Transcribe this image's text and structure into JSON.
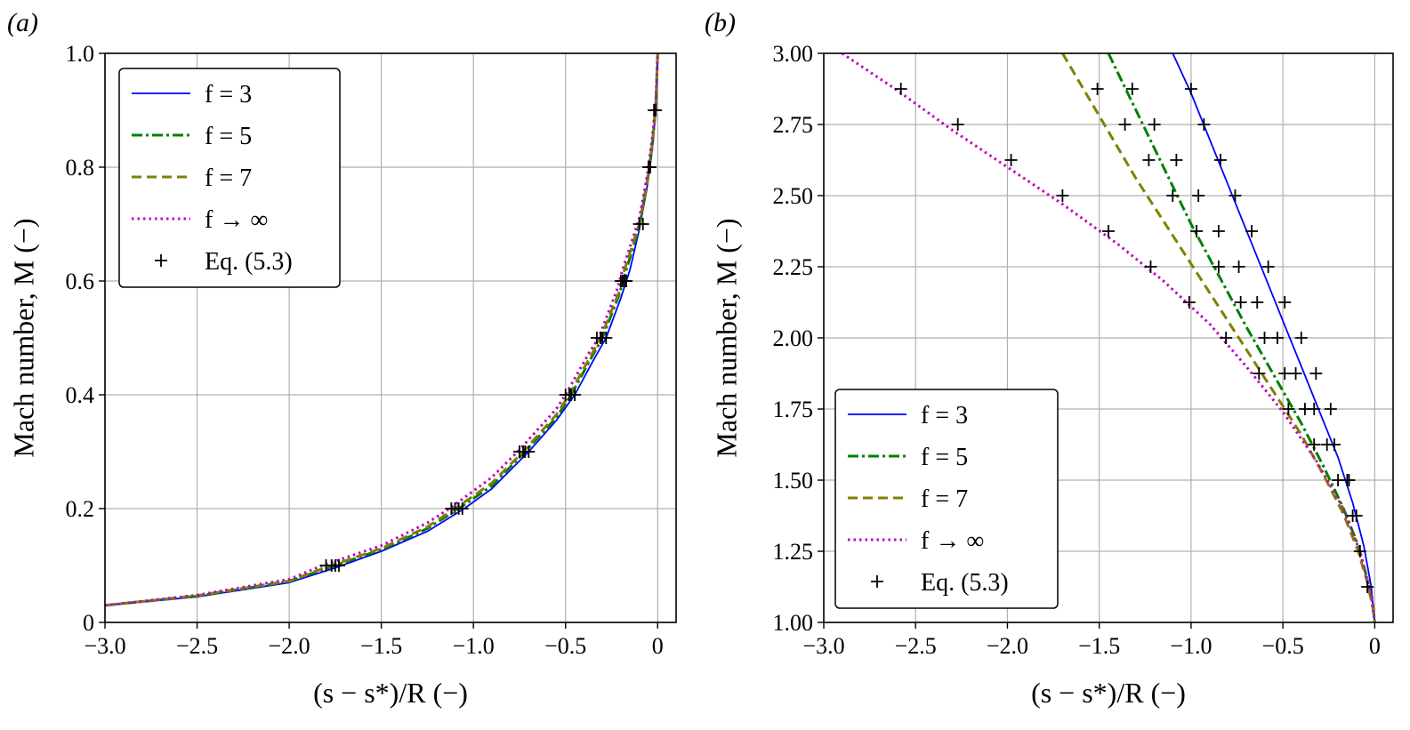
{
  "chart_data": [
    {
      "type": "line",
      "panel_label": "(a)",
      "xlabel": "(s − s*)/R (−)",
      "ylabel": "Mach number, M (−)",
      "xlim": [
        -3.0,
        0.1
      ],
      "ylim": [
        0,
        1.0
      ],
      "xticks": [
        -3.0,
        -2.5,
        -2.0,
        -1.5,
        -1.0,
        -0.5,
        0
      ],
      "xtick_labels": [
        "−3.0",
        "−2.5",
        "−2.0",
        "−1.5",
        "−1.0",
        "−0.5",
        "0"
      ],
      "yticks": [
        0,
        0.2,
        0.4,
        0.6,
        0.8,
        1.0
      ],
      "ytick_labels": [
        "0",
        "0.2",
        "0.4",
        "0.6",
        "0.8",
        "1.0"
      ],
      "grid": true,
      "legend_position": "top-left",
      "series": [
        {
          "name": "f = 3",
          "color": "#0000ff",
          "dash": "solid",
          "x": [
            -3.0,
            -2.5,
            -2.0,
            -1.75,
            -1.5,
            -1.25,
            -1.05,
            -0.9,
            -0.7,
            -0.55,
            -0.45,
            -0.35,
            -0.28,
            -0.2,
            -0.15,
            -0.1,
            -0.06,
            -0.03,
            -0.01,
            0
          ],
          "y": [
            0.03,
            0.045,
            0.07,
            0.096,
            0.125,
            0.16,
            0.2,
            0.235,
            0.3,
            0.355,
            0.4,
            0.46,
            0.5,
            0.57,
            0.62,
            0.69,
            0.76,
            0.83,
            0.9,
            1.0
          ]
        },
        {
          "name": "f = 5",
          "color": "#008000",
          "dash": "dashdot",
          "x": [
            -3.0,
            -2.5,
            -2.0,
            -1.77,
            -1.5,
            -1.25,
            -1.08,
            -0.9,
            -0.72,
            -0.55,
            -0.47,
            -0.36,
            -0.3,
            -0.21,
            -0.17,
            -0.1,
            -0.06,
            -0.03,
            -0.01,
            0
          ],
          "y": [
            0.03,
            0.046,
            0.072,
            0.098,
            0.128,
            0.165,
            0.2,
            0.24,
            0.3,
            0.36,
            0.4,
            0.465,
            0.5,
            0.575,
            0.62,
            0.695,
            0.765,
            0.835,
            0.905,
            1.0
          ]
        },
        {
          "name": "f = 7",
          "color": "#808000",
          "dash": "dashed",
          "x": [
            -3.0,
            -2.5,
            -2.0,
            -1.78,
            -1.5,
            -1.25,
            -1.1,
            -0.9,
            -0.73,
            -0.55,
            -0.48,
            -0.36,
            -0.31,
            -0.21,
            -0.18,
            -0.1,
            -0.06,
            -0.03,
            -0.01,
            0
          ],
          "y": [
            0.03,
            0.047,
            0.073,
            0.099,
            0.13,
            0.168,
            0.2,
            0.245,
            0.3,
            0.365,
            0.4,
            0.47,
            0.5,
            0.58,
            0.62,
            0.7,
            0.77,
            0.84,
            0.91,
            1.0
          ]
        },
        {
          "name": "f → ∞",
          "color": "#bf00bf",
          "dash": "dotted",
          "x": [
            -3.0,
            -2.5,
            -2.0,
            -1.82,
            -1.5,
            -1.25,
            -1.13,
            -0.9,
            -0.76,
            -0.55,
            -0.5,
            -0.37,
            -0.32,
            -0.22,
            -0.19,
            -0.1,
            -0.06,
            -0.03,
            -0.01,
            0
          ],
          "y": [
            0.03,
            0.048,
            0.076,
            0.1,
            0.135,
            0.175,
            0.2,
            0.255,
            0.3,
            0.375,
            0.4,
            0.475,
            0.5,
            0.585,
            0.62,
            0.71,
            0.78,
            0.85,
            0.915,
            1.0
          ]
        },
        {
          "name": "Eq. (5.3)",
          "color": "#000000",
          "marker": "+",
          "x": [
            -1.8,
            -1.77,
            -1.75,
            -1.73,
            -1.12,
            -1.1,
            -1.08,
            -1.06,
            -0.75,
            -0.73,
            -0.72,
            -0.7,
            -0.5,
            -0.48,
            -0.47,
            -0.45,
            -0.33,
            -0.31,
            -0.3,
            -0.28,
            -0.2,
            -0.19,
            -0.18,
            -0.17,
            -0.1,
            -0.08,
            -0.05,
            -0.04,
            -0.02,
            -0.01
          ],
          "y": [
            0.1,
            0.1,
            0.1,
            0.1,
            0.2,
            0.2,
            0.2,
            0.2,
            0.3,
            0.3,
            0.3,
            0.3,
            0.4,
            0.4,
            0.4,
            0.4,
            0.5,
            0.5,
            0.5,
            0.5,
            0.6,
            0.6,
            0.6,
            0.6,
            0.7,
            0.7,
            0.8,
            0.8,
            0.9,
            0.9
          ]
        }
      ]
    },
    {
      "type": "line",
      "panel_label": "(b)",
      "xlabel": "(s − s*)/R (−)",
      "ylabel": "Mach number, M (−)",
      "xlim": [
        -3.0,
        0.1
      ],
      "ylim": [
        1.0,
        3.0
      ],
      "xticks": [
        -3.0,
        -2.5,
        -2.0,
        -1.5,
        -1.0,
        -0.5,
        0
      ],
      "xtick_labels": [
        "−3.0",
        "−2.5",
        "−2.0",
        "−1.5",
        "−1.0",
        "−0.5",
        "0"
      ],
      "yticks": [
        1.0,
        1.25,
        1.5,
        1.75,
        2.0,
        2.25,
        2.5,
        2.75,
        3.0
      ],
      "ytick_labels": [
        "1.00",
        "1.25",
        "1.50",
        "1.75",
        "2.00",
        "2.25",
        "2.50",
        "2.75",
        "3.00"
      ],
      "grid": true,
      "legend_position": "bottom-left",
      "series": [
        {
          "name": "f = 3",
          "color": "#0000ff",
          "dash": "solid",
          "x": [
            -1.1,
            -1.0,
            -0.9,
            -0.8,
            -0.7,
            -0.6,
            -0.5,
            -0.4,
            -0.3,
            -0.2,
            -0.12,
            -0.06,
            -0.02,
            0
          ],
          "y": [
            3.0,
            2.86,
            2.7,
            2.54,
            2.38,
            2.22,
            2.06,
            1.9,
            1.74,
            1.58,
            1.42,
            1.27,
            1.13,
            1.0
          ]
        },
        {
          "name": "f = 5",
          "color": "#008000",
          "dash": "dashdot",
          "x": [
            -1.45,
            -1.3,
            -1.15,
            -1.0,
            -0.85,
            -0.7,
            -0.55,
            -0.4,
            -0.28,
            -0.17,
            -0.09,
            -0.04,
            -0.01,
            0
          ],
          "y": [
            3.0,
            2.8,
            2.6,
            2.4,
            2.22,
            2.04,
            1.87,
            1.7,
            1.55,
            1.4,
            1.27,
            1.15,
            1.06,
            1.0
          ]
        },
        {
          "name": "f = 7",
          "color": "#808000",
          "dash": "dashed",
          "x": [
            -1.7,
            -1.5,
            -1.3,
            -1.1,
            -0.9,
            -0.72,
            -0.55,
            -0.4,
            -0.28,
            -0.17,
            -0.09,
            -0.04,
            -0.01,
            0
          ],
          "y": [
            3.0,
            2.78,
            2.56,
            2.36,
            2.16,
            1.98,
            1.81,
            1.66,
            1.52,
            1.38,
            1.25,
            1.14,
            1.05,
            1.0
          ]
        },
        {
          "name": "f → ∞",
          "color": "#bf00bf",
          "dash": "dotted",
          "x": [
            -2.9,
            -2.6,
            -2.3,
            -2.0,
            -1.7,
            -1.4,
            -1.15,
            -0.9,
            -0.7,
            -0.5,
            -0.32,
            -0.18,
            -0.08,
            -0.02,
            0
          ],
          "y": [
            3.0,
            2.87,
            2.73,
            2.6,
            2.47,
            2.33,
            2.2,
            2.05,
            1.9,
            1.74,
            1.57,
            1.41,
            1.25,
            1.1,
            1.0
          ]
        },
        {
          "name": "Eq. (5.3)",
          "color": "#000000",
          "marker": "+",
          "x": [
            -2.58,
            -2.27,
            -1.98,
            -1.7,
            -1.45,
            -1.22,
            -1.01,
            -0.81,
            -0.63,
            -0.47,
            -0.33,
            -0.2,
            -0.1,
            -1.51,
            -1.36,
            -1.23,
            -1.1,
            -0.97,
            -0.85,
            -0.73,
            -0.6,
            -0.49,
            -0.38,
            -0.26,
            -0.14,
            -1.32,
            -1.2,
            -1.08,
            -0.96,
            -0.85,
            -0.74,
            -0.64,
            -0.53,
            -0.43,
            -0.33,
            -0.22,
            -0.12,
            -1.0,
            -0.93,
            -0.84,
            -0.76,
            -0.67,
            -0.58,
            -0.49,
            -0.4,
            -0.32,
            -0.24,
            -0.15,
            -0.08,
            -0.04
          ],
          "y": [
            2.875,
            2.75,
            2.625,
            2.5,
            2.375,
            2.25,
            2.125,
            2.0,
            1.875,
            1.75,
            1.625,
            1.5,
            1.375,
            2.875,
            2.75,
            2.625,
            2.5,
            2.375,
            2.25,
            2.125,
            2.0,
            1.875,
            1.75,
            1.625,
            1.5,
            2.875,
            2.75,
            2.625,
            2.5,
            2.375,
            2.25,
            2.125,
            2.0,
            1.875,
            1.75,
            1.625,
            1.375,
            2.875,
            2.75,
            2.625,
            2.5,
            2.375,
            2.25,
            2.125,
            2.0,
            1.875,
            1.75,
            1.5,
            1.25,
            1.125
          ]
        }
      ]
    }
  ]
}
